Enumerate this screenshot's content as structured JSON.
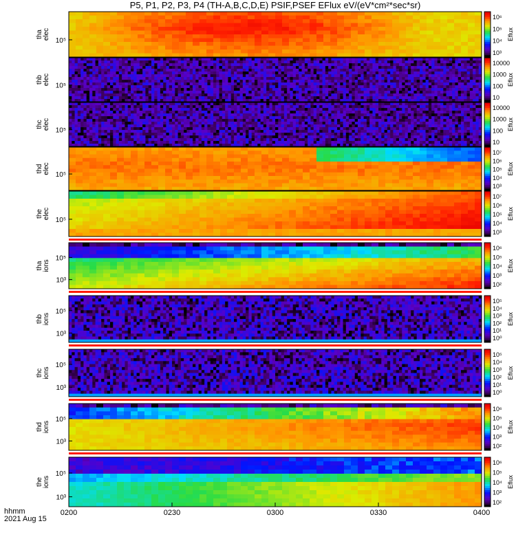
{
  "title": "P5, P1, P2, P3, P4 (TH-A,B,C,D,E) PSIF,PSEF EFlux eV/(eV*cm²*sec*sr)",
  "footer": {
    "line1": "hhmm",
    "line2": "2021 Aug 15"
  },
  "chart_data": {
    "type": "heatmap",
    "title": "P5, P1, P2, P3, P4 (TH-A,B,C,D,E) PSIF,PSEF EFlux eV/(eV*cm²*sec*sr)",
    "x_ticks": [
      "0200",
      "0230",
      "0300",
      "0330",
      "0400"
    ],
    "xlim": [
      "0200",
      "0400"
    ],
    "colorbar_label": "Eflux",
    "panels": [
      {
        "ylabel": [
          "tha",
          "elec"
        ],
        "y_ticks": [
          "10⁵"
        ],
        "colorbar_ticks": [
          "10⁶",
          "10⁵",
          "10⁴",
          "10³"
        ],
        "pattern": "intense"
      },
      {
        "ylabel": [
          "thb",
          "elec"
        ],
        "y_ticks": [
          "10⁵"
        ],
        "colorbar_ticks": [
          "10000",
          "1000",
          "100",
          "10"
        ],
        "pattern": "noise"
      },
      {
        "ylabel": [
          "thc",
          "elec"
        ],
        "y_ticks": [
          "10⁵"
        ],
        "colorbar_ticks": [
          "10000",
          "1000",
          "100",
          "10"
        ],
        "pattern": "noise"
      },
      {
        "ylabel": [
          "thd",
          "elec"
        ],
        "y_ticks": [
          "10⁵"
        ],
        "colorbar_ticks": [
          "10⁷",
          "10⁶",
          "10⁵",
          "10⁴",
          "10³"
        ],
        "pattern": "elec-fade"
      },
      {
        "ylabel": [
          "the",
          "elec"
        ],
        "y_ticks": [
          "10⁵"
        ],
        "colorbar_ticks": [
          "10⁷",
          "10⁶",
          "10⁵",
          "10⁴",
          "10³"
        ],
        "pattern": "elec-rise"
      },
      {
        "ylabel": [
          "tha",
          "ions"
        ],
        "y_ticks": [
          "10⁵",
          "10³"
        ],
        "colorbar_ticks": [
          "10⁶",
          "10⁵",
          "10⁴",
          "10³",
          "10²"
        ],
        "pattern": "ions-a"
      },
      {
        "ylabel": [
          "thb",
          "ions"
        ],
        "y_ticks": [
          "10⁵",
          "10³"
        ],
        "colorbar_ticks": [
          "10⁵",
          "10⁴",
          "10³",
          "10²",
          "10¹",
          "10⁰"
        ],
        "pattern": "ions-noise"
      },
      {
        "ylabel": [
          "thc",
          "ions"
        ],
        "y_ticks": [
          "10⁵",
          "10³"
        ],
        "colorbar_ticks": [
          "10⁵",
          "10⁴",
          "10³",
          "10²",
          "10¹",
          "10⁰"
        ],
        "pattern": "ions-noise"
      },
      {
        "ylabel": [
          "thd",
          "ions"
        ],
        "y_ticks": [
          "10⁵",
          "10³"
        ],
        "colorbar_ticks": [
          "10⁶",
          "10⁵",
          "10⁴",
          "10³",
          "10²"
        ],
        "pattern": "ions-d"
      },
      {
        "ylabel": [
          "the",
          "ions"
        ],
        "y_ticks": [
          "10⁵",
          "10³"
        ],
        "colorbar_ticks": [
          "10⁶",
          "10⁵",
          "10⁴",
          "10³",
          "10²"
        ],
        "pattern": "ions-e"
      }
    ]
  }
}
